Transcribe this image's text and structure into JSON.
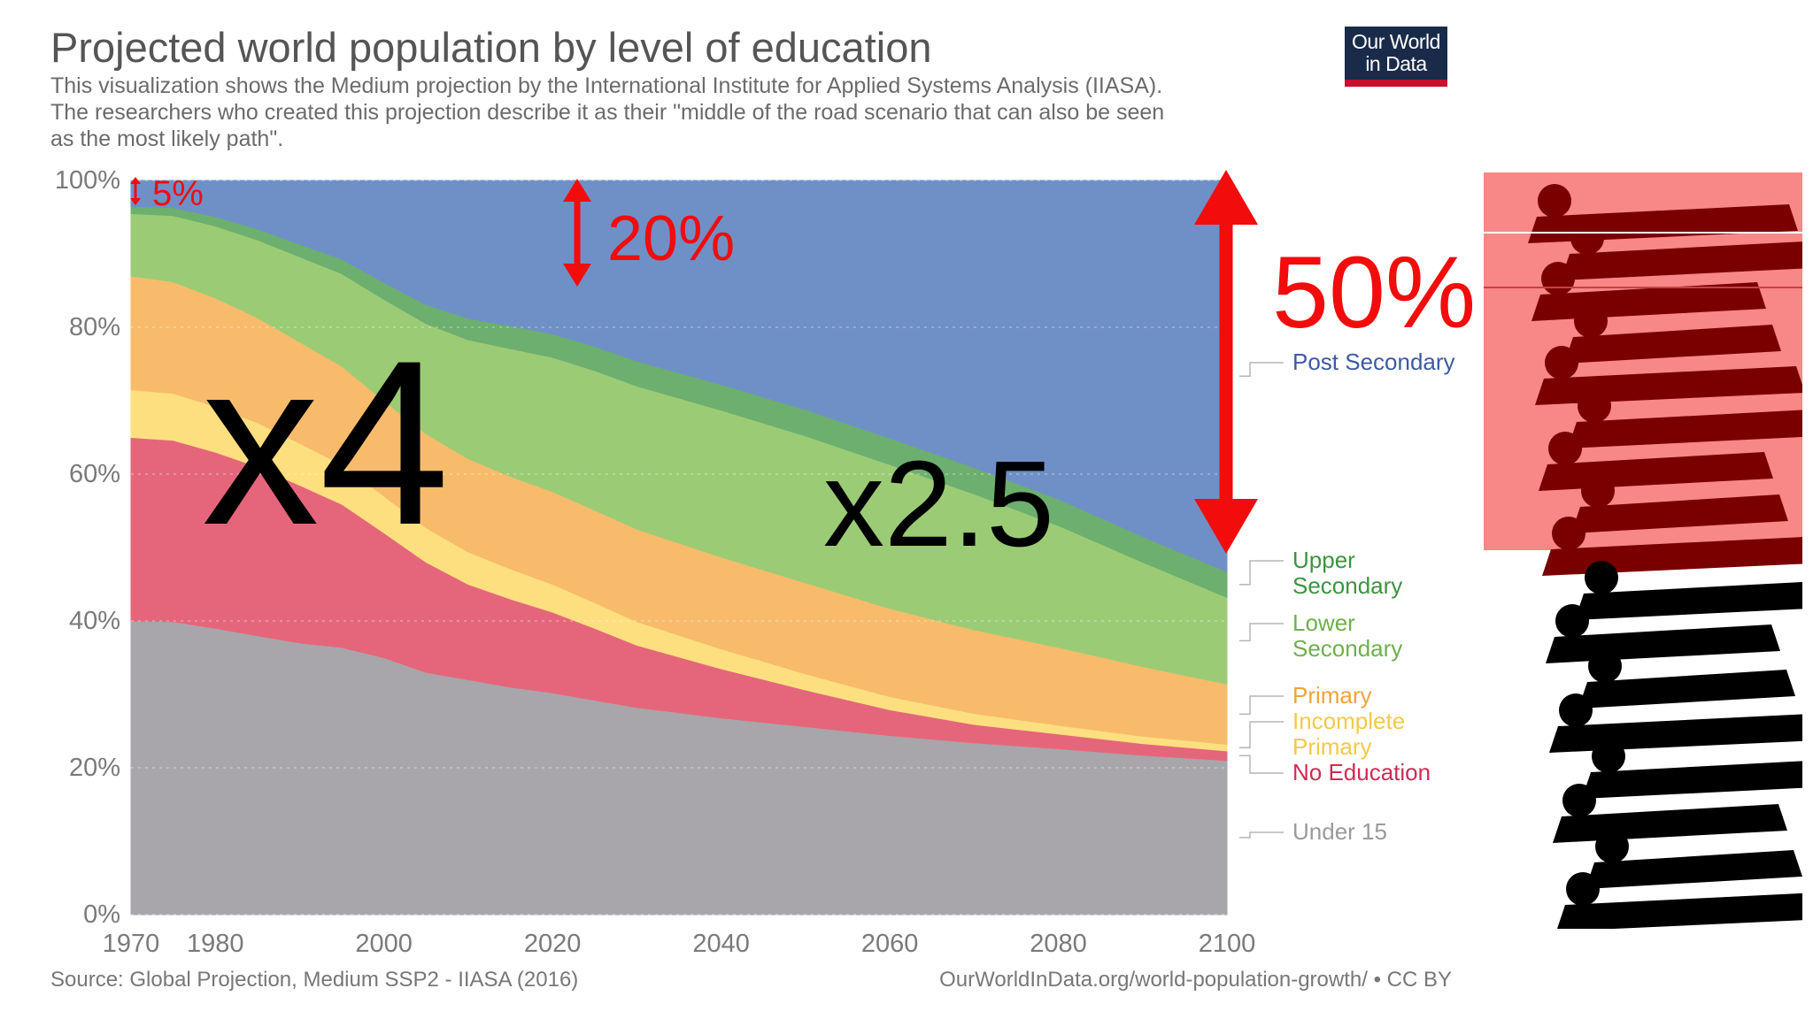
{
  "header": {
    "title": "Projected world population by level of education",
    "subtitle_lines": [
      "This visualization shows the Medium projection by the International Institute for Applied Systems Analysis (IIASA).",
      "The researchers who created this projection describe it as their \"middle of the road scenario that can also be seen",
      "as the most likely path\"."
    ]
  },
  "logo": {
    "line1": "Our World",
    "line2": "in Data"
  },
  "footer": {
    "source": "Source: Global Projection, Medium SSP2 - IIASA (2016)",
    "credit": "OurWorldInData.org/world-population-growth/ • CC BY"
  },
  "annotations": {
    "small_pct": "5%",
    "mid_pct": "20%",
    "big_pct": "50%",
    "factor_left": "x4",
    "factor_right": "x2.5"
  },
  "colors": {
    "under_15": "#a8a6aa",
    "no_education": "#e5667b",
    "incomplete_primary": "#fddf7f",
    "primary": "#f7bb6b",
    "lower_secondary": "#9ccb76",
    "upper_secondary": "#6daf6e",
    "post_secondary": "#6f90c7",
    "annotation_red": "#f20c0c",
    "highlight_box": "#f88787"
  },
  "chart_data": {
    "type": "area",
    "stacked": true,
    "x": [
      1970,
      1975,
      1980,
      1985,
      1990,
      1995,
      2000,
      2005,
      2010,
      2015,
      2020,
      2025,
      2030,
      2040,
      2050,
      2060,
      2070,
      2080,
      2090,
      2100
    ],
    "ylim": [
      0,
      100
    ],
    "yticks": [
      "0%",
      "20%",
      "40%",
      "60%",
      "80%",
      "100%"
    ],
    "xticks": [
      1970,
      1980,
      2000,
      2020,
      2040,
      2060,
      2080,
      2100
    ],
    "series": [
      {
        "name": "Under 15",
        "values": [
          40,
          39.9,
          39,
          38,
          37,
          36.4,
          35,
          33,
          32,
          31,
          30.2,
          29.2,
          28.2,
          26.8,
          25.6,
          24.4,
          23.4,
          22.6,
          21.7,
          21.0
        ]
      },
      {
        "name": "No Education",
        "values": [
          25,
          24.7,
          24,
          23,
          21.5,
          19.5,
          17,
          15,
          13,
          12,
          11,
          9.8,
          8.5,
          6.7,
          5,
          3.5,
          2.5,
          2.0,
          1.6,
          1.3
        ]
      },
      {
        "name": "Incomplete Primary",
        "values": [
          6.5,
          6.4,
          6.2,
          6.0,
          5.7,
          5.4,
          5.0,
          4.7,
          4.4,
          4.1,
          3.8,
          3.5,
          3.2,
          2.7,
          2.2,
          1.8,
          1.5,
          1.2,
          1.0,
          0.9
        ]
      },
      {
        "name": "Primary",
        "values": [
          15.5,
          15.2,
          14.8,
          14.3,
          13.8,
          13.4,
          13.0,
          12.8,
          12.7,
          12.6,
          12.6,
          12.6,
          12.6,
          12.5,
          12.4,
          12.0,
          11.4,
          10.6,
          9.5,
          8.2
        ]
      },
      {
        "name": "Lower Secondary",
        "values": [
          8.5,
          9.0,
          9.8,
          10.6,
          11.6,
          12.6,
          13.8,
          15.0,
          16.2,
          17.4,
          18.3,
          19.0,
          19.5,
          20.0,
          20.0,
          19.6,
          18.5,
          16.6,
          14.2,
          11.8
        ]
      },
      {
        "name": "Upper Secondary",
        "values": [
          1.0,
          1.1,
          1.3,
          1.5,
          1.7,
          2.0,
          2.3,
          2.6,
          2.9,
          3.1,
          3.2,
          3.3,
          3.4,
          3.5,
          3.6,
          3.6,
          3.6,
          3.6,
          3.5,
          3.5
        ]
      },
      {
        "name": "Post Secondary",
        "values": [
          3.5,
          3.7,
          4.9,
          6.6,
          8.7,
          10.7,
          13.9,
          16.9,
          18.8,
          19.8,
          20.9,
          22.6,
          24.6,
          27.8,
          31.2,
          35.1,
          39.1,
          43.4,
          48.5,
          53.3
        ]
      }
    ],
    "legend": [
      {
        "label": "Post Secondary",
        "lines": [
          "Post Secondary"
        ]
      },
      {
        "label": "Upper Secondary",
        "lines": [
          "Upper",
          "Secondary"
        ]
      },
      {
        "label": "Lower Secondary",
        "lines": [
          "Lower",
          "Secondary"
        ]
      },
      {
        "label": "Primary",
        "lines": [
          "Primary"
        ]
      },
      {
        "label": "Incomplete Primary",
        "lines": [
          "Incomplete",
          "Primary"
        ]
      },
      {
        "label": "No Education",
        "lines": [
          "No Education"
        ]
      },
      {
        "label": "Under 15",
        "lines": [
          "Under 15"
        ]
      }
    ],
    "legend_position": "right",
    "grid": true
  }
}
